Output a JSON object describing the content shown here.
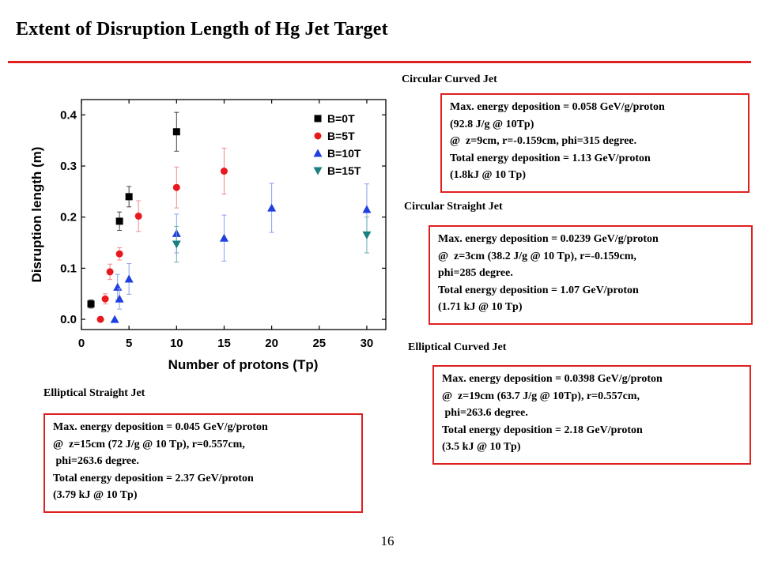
{
  "slide": {
    "title": "Extent of Disruption Length of Hg Jet Target",
    "page_number": "16"
  },
  "sections": {
    "circular_curved": {
      "label": "Circular Curved Jet",
      "lines": [
        "Max. energy deposition = 0.058 GeV/g/proton",
        "(92.8 J/g @ 10Tp)",
        "@  z=9cm, r=-0.159cm, phi=315 degree.",
        "Total energy deposition = 1.13 GeV/proton",
        "(1.8kJ @ 10 Tp)"
      ]
    },
    "circular_straight": {
      "label": "Circular Straight Jet",
      "lines": [
        "Max. energy deposition = 0.0239 GeV/g/proton",
        "@  z=3cm (38.2 J/g @ 10 Tp), r=-0.159cm,",
        "phi=285 degree.",
        "Total energy deposition = 1.07 GeV/proton",
        "(1.71 kJ @ 10 Tp)"
      ]
    },
    "elliptical_curved": {
      "label": "Elliptical Curved Jet",
      "lines": [
        "Max. energy deposition = 0.0398 GeV/g/proton",
        "@  z=19cm (63.7 J/g @ 10Tp), r=0.557cm,",
        " phi=263.6 degree.",
        "Total energy deposition = 2.18 GeV/proton",
        "(3.5 kJ @ 10 Tp)"
      ]
    },
    "elliptical_straight": {
      "label": "Elliptical Straight Jet",
      "lines": [
        "Max. energy deposition = 0.045 GeV/g/proton",
        "@  z=15cm (72 J/g @ 10 Tp), r=0.557cm,",
        " phi=263.6 degree.",
        "Total energy deposition = 2.37 GeV/proton",
        "(3.79 kJ @ 10 Tp)"
      ]
    }
  },
  "chart_data": {
    "type": "scatter",
    "xlabel": "Number of protons (Tp)",
    "ylabel": "Disruption length (m)",
    "xlim": [
      0,
      32
    ],
    "ylim": [
      -0.02,
      0.43
    ],
    "xticks": [
      0,
      5,
      10,
      15,
      20,
      25,
      30
    ],
    "yticks": [
      0.0,
      0.1,
      0.2,
      0.3,
      0.4
    ],
    "ytick_labels": [
      "0.0",
      "0.1",
      "0.2",
      "0.3",
      "0.4"
    ],
    "legend_position": "top-right",
    "series": [
      {
        "name": "B=0T",
        "marker": "square",
        "color": "#000000",
        "errcolor": "#444444",
        "points": [
          {
            "x": 1,
            "y": 0.03,
            "err": 0.008
          },
          {
            "x": 4,
            "y": 0.192,
            "err": 0.018
          },
          {
            "x": 5,
            "y": 0.24,
            "err": 0.02
          },
          {
            "x": 10,
            "y": 0.367,
            "err": 0.038
          }
        ]
      },
      {
        "name": "B=5T",
        "marker": "circle",
        "color": "#e8191e",
        "errcolor": "#f08a8a",
        "points": [
          {
            "x": 2,
            "y": 0.0,
            "err": 0.0
          },
          {
            "x": 2.5,
            "y": 0.04,
            "err": 0.01
          },
          {
            "x": 3,
            "y": 0.093,
            "err": 0.015
          },
          {
            "x": 4,
            "y": 0.128,
            "err": 0.012
          },
          {
            "x": 6,
            "y": 0.202,
            "err": 0.03
          },
          {
            "x": 10,
            "y": 0.258,
            "err": 0.04
          },
          {
            "x": 15,
            "y": 0.29,
            "err": 0.045
          }
        ]
      },
      {
        "name": "B=10T",
        "marker": "triangle",
        "color": "#1f3fe0",
        "errcolor": "#8a9ef0",
        "points": [
          {
            "x": 3.5,
            "y": 0.0,
            "err": 0.0
          },
          {
            "x": 3.8,
            "y": 0.063,
            "err": 0.025
          },
          {
            "x": 4,
            "y": 0.04,
            "err": 0.02
          },
          {
            "x": 5,
            "y": 0.079,
            "err": 0.03
          },
          {
            "x": 10,
            "y": 0.168,
            "err": 0.038
          },
          {
            "x": 15,
            "y": 0.159,
            "err": 0.045
          },
          {
            "x": 20,
            "y": 0.218,
            "err": 0.048
          },
          {
            "x": 30,
            "y": 0.215,
            "err": 0.05
          }
        ]
      },
      {
        "name": "B=15T",
        "marker": "triangle-down",
        "color": "#1a7f7f",
        "errcolor": "#6aaeae",
        "points": [
          {
            "x": 10,
            "y": 0.147,
            "err": 0.035
          },
          {
            "x": 30,
            "y": 0.165,
            "err": 0.035
          }
        ]
      }
    ]
  }
}
